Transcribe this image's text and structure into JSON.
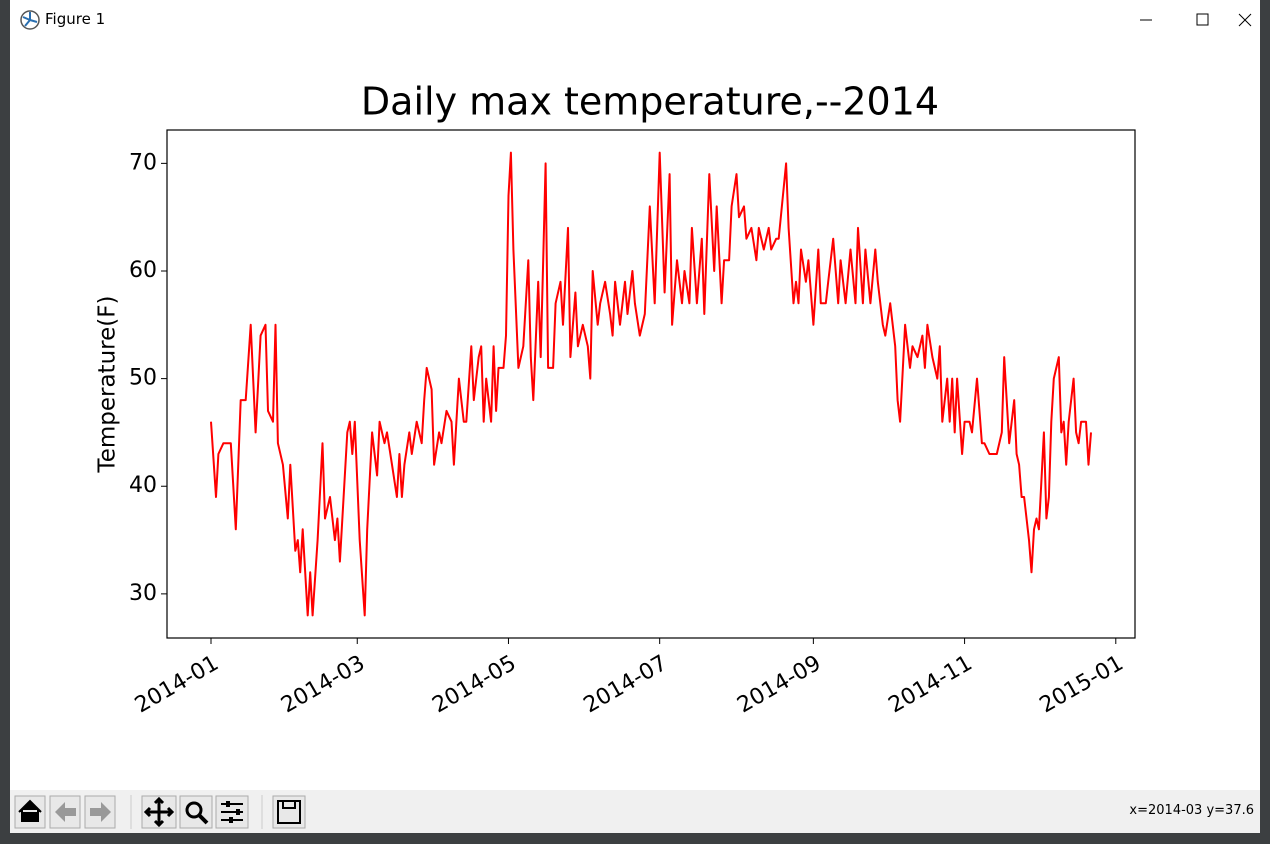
{
  "window": {
    "title": "Figure 1"
  },
  "status": "x=2014-03 y=37.6",
  "chart_data": {
    "type": "line",
    "title": "Daily max temperature,--2014",
    "y_label": "Temperature(F)",
    "color": "#ff0000",
    "x": [
      0,
      2,
      3,
      5,
      8,
      10,
      12,
      14,
      16,
      18,
      20,
      22,
      23,
      25,
      26,
      27,
      29,
      31,
      32,
      34,
      35,
      36,
      37,
      39,
      40,
      41,
      43,
      45,
      46,
      48,
      50,
      51,
      52,
      55,
      56,
      57,
      58,
      60,
      62,
      63,
      65,
      67,
      68,
      70,
      71,
      73,
      75,
      76,
      77,
      78,
      80,
      81,
      83,
      85,
      86,
      87,
      89,
      90,
      92,
      93,
      95,
      97,
      98,
      100,
      102,
      103,
      105,
      106,
      108,
      109,
      110,
      111,
      113,
      114,
      115,
      116,
      118,
      119,
      120,
      121,
      122,
      124,
      126,
      128,
      129,
      130,
      132,
      133,
      134,
      135,
      136,
      138,
      139,
      141,
      142,
      144,
      145,
      147,
      148,
      150,
      152,
      153,
      154,
      156,
      157,
      159,
      161,
      162,
      163,
      165,
      167,
      168,
      170,
      171,
      173,
      175,
      176,
      177,
      179,
      180,
      181,
      183,
      185,
      186,
      188,
      190,
      191,
      193,
      194,
      196,
      198,
      199,
      201,
      203,
      204,
      206,
      207,
      209,
      210,
      212,
      213,
      215,
      216,
      218,
      220,
      221,
      223,
      225,
      226,
      228,
      229,
      232,
      233,
      235,
      236,
      237,
      238,
      240,
      241,
      243,
      245,
      246,
      248,
      249,
      251,
      253,
      254,
      256,
      258,
      260,
      261,
      263,
      264,
      266,
      268,
      269,
      271,
      272,
      274,
      276,
      277,
      278,
      280,
      282,
      283,
      285,
      287,
      288,
      289,
      291,
      293,
      294,
      295,
      297,
      298,
      299,
      300,
      301,
      303,
      304,
      306,
      307,
      309,
      311,
      312,
      314,
      317,
      319,
      320,
      322,
      324,
      325,
      326,
      327,
      328,
      330,
      331,
      332,
      333,
      334,
      336,
      337,
      338,
      339,
      340,
      342,
      343,
      344,
      345,
      346,
      348,
      349,
      350,
      351,
      353,
      354,
      355
    ],
    "values": [
      46,
      39,
      43,
      44,
      44,
      36,
      48,
      48,
      55,
      45,
      54,
      55,
      47,
      46,
      55,
      44,
      42,
      37,
      42,
      34,
      35,
      32,
      36,
      28,
      32,
      28,
      35,
      44,
      37,
      39,
      35,
      37,
      33,
      45,
      46,
      43,
      46,
      35,
      28,
      36,
      45,
      41,
      46,
      44,
      45,
      42,
      39,
      43,
      39,
      42,
      45,
      43,
      46,
      44,
      48,
      51,
      49,
      42,
      45,
      44,
      47,
      46,
      42,
      50,
      46,
      46,
      53,
      48,
      52,
      53,
      46,
      50,
      46,
      53,
      47,
      51,
      51,
      54,
      67,
      71,
      62,
      51,
      53,
      61,
      52,
      48,
      59,
      52,
      61,
      70,
      51,
      51,
      57,
      59,
      55,
      64,
      52,
      58,
      53,
      55,
      53,
      50,
      60,
      55,
      57,
      59,
      56,
      54,
      59,
      55,
      59,
      56,
      60,
      57,
      54,
      56,
      61,
      66,
      57,
      64,
      71,
      58,
      69,
      55,
      61,
      57,
      60,
      57,
      64,
      57,
      63,
      56,
      69,
      60,
      66,
      57,
      61,
      61,
      66,
      69,
      65,
      66,
      63,
      64,
      61,
      64,
      62,
      64,
      62,
      63,
      63,
      70,
      64,
      57,
      59,
      57,
      62,
      59,
      61,
      55,
      62,
      57,
      57,
      59,
      63,
      57,
      61,
      57,
      62,
      57,
      64,
      57,
      62,
      57,
      62,
      59,
      55,
      54,
      57,
      53,
      48,
      46,
      55,
      51,
      53,
      52,
      54,
      51,
      55,
      52,
      50,
      53,
      46,
      50,
      46,
      50,
      45,
      50,
      43,
      46,
      46,
      45,
      50,
      44,
      44,
      43,
      43,
      45,
      52,
      44,
      48,
      43,
      42,
      39,
      39,
      35,
      32,
      36,
      37,
      36,
      45,
      37,
      39,
      46,
      50,
      52,
      45,
      46,
      42,
      46,
      50,
      45,
      44,
      46,
      46,
      42,
      45
    ],
    "xlim": [
      -17.75,
      372.75
    ],
    "xticks": [
      {
        "value": 0,
        "label": "2014-01"
      },
      {
        "value": 59,
        "label": "2014-03"
      },
      {
        "value": 120,
        "label": "2014-05"
      },
      {
        "value": 181,
        "label": "2014-07"
      },
      {
        "value": 243,
        "label": "2014-09"
      },
      {
        "value": 304,
        "label": "2014-11"
      },
      {
        "value": 365,
        "label": "2015-01"
      }
    ],
    "ylim": [
      25.9,
      73.1
    ],
    "yticks": [
      30,
      40,
      50,
      60,
      70
    ]
  }
}
